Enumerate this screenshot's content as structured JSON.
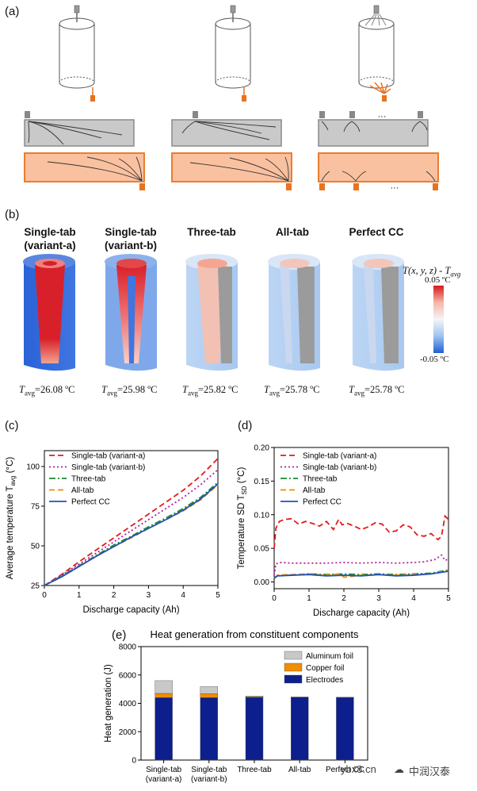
{
  "panels": {
    "a": "(a)",
    "b": "(b)",
    "c": "(c)",
    "d": "(d)",
    "e": "(e)"
  },
  "schematic": {
    "ellipsis": "···"
  },
  "thermal": {
    "headers": [
      {
        "line1": "Single-tab",
        "line2": "(variant-a)"
      },
      {
        "line1": "Single-tab",
        "line2": "(variant-b)"
      },
      {
        "line1": "Three-tab",
        "line2": ""
      },
      {
        "line1": "All-tab",
        "line2": ""
      },
      {
        "line1": "Perfect CC",
        "line2": ""
      }
    ],
    "tavg_prefix": "T",
    "tavg_sub": "avg",
    "tavg_values": [
      "=26.08 ºC",
      "=25.98 ºC",
      "=25.82 ºC",
      "=25.78 ºC",
      "=25.78 ºC"
    ],
    "colorbar": {
      "title_main": "T(x, y, z) - T",
      "title_sub": "avg",
      "max_label": "0.05 ºC",
      "min_label": "-0.05 ºC",
      "colors": [
        "#d7191c",
        "#f7b6a8",
        "#f5f5f5",
        "#9cc3ef",
        "#1f5fd6"
      ]
    }
  },
  "watermark": {
    "site": "ybx8.cn",
    "brand": "中润汉泰"
  },
  "chart_data": [
    {
      "id": "c",
      "type": "line",
      "title": "",
      "xlabel": "Discharge capacity (Ah)",
      "ylabel": "Average temperature T",
      "ylabel_sub": "avg",
      "ylabel_unit": " (°C)",
      "xlim": [
        0,
        5
      ],
      "ylim": [
        25,
        110
      ],
      "xticks": [
        0,
        1,
        2,
        3,
        4,
        5
      ],
      "yticks": [
        25,
        50,
        75,
        100
      ],
      "legend": "top-left",
      "series": [
        {
          "name": "Single-tab (variant-a)",
          "color": "#e31a1c",
          "dash": "7,4",
          "x": [
            0,
            0.5,
            1,
            1.5,
            2,
            2.5,
            3,
            3.5,
            4,
            4.5,
            5
          ],
          "y": [
            25,
            32,
            40,
            47.5,
            55,
            62.5,
            70,
            77.5,
            85,
            94,
            105
          ]
        },
        {
          "name": "Single-tab (variant-b)",
          "color": "#b0209a",
          "dash": "2,3",
          "x": [
            0,
            0.5,
            1,
            1.5,
            2,
            2.5,
            3,
            3.5,
            4,
            4.5,
            5
          ],
          "y": [
            25,
            31.5,
            38.5,
            45.5,
            52.5,
            59.5,
            66.5,
            73.5,
            80.5,
            88.5,
            98
          ]
        },
        {
          "name": "Three-tab",
          "color": "#1a8a2e",
          "dash": "8,3,2,3",
          "x": [
            0,
            0.5,
            1,
            1.5,
            2,
            2.5,
            3,
            3.5,
            4,
            4.5,
            5
          ],
          "y": [
            25,
            31,
            37.5,
            44,
            50.5,
            56,
            62,
            67.5,
            73.5,
            80.5,
            90
          ]
        },
        {
          "name": "All-tab",
          "color": "#f08c00",
          "dash": "7,4",
          "x": [
            0,
            0.5,
            1,
            1.5,
            2,
            2.5,
            3,
            3.5,
            4,
            4.5,
            5
          ],
          "y": [
            25,
            30.5,
            37,
            43.5,
            49.5,
            55,
            61,
            66.5,
            72,
            79,
            88.5
          ]
        },
        {
          "name": "Perfect CC",
          "color": "#1f4fbf",
          "dash": "",
          "x": [
            0,
            0.5,
            1,
            1.5,
            2,
            2.5,
            3,
            3.5,
            4,
            4.5,
            5
          ],
          "y": [
            25,
            30.5,
            37,
            43.5,
            49.5,
            55.5,
            61,
            66.5,
            72.5,
            79.5,
            89
          ]
        }
      ]
    },
    {
      "id": "d",
      "type": "line",
      "title": "",
      "xlabel": "Discharge capacity (Ah)",
      "ylabel": "Temperature SD T",
      "ylabel_sub": "SD",
      "ylabel_unit": " (°C)",
      "xlim": [
        0,
        5
      ],
      "ylim": [
        -0.01,
        0.2
      ],
      "xticks": [
        0,
        1,
        2,
        3,
        4,
        5
      ],
      "yticks": [
        0,
        0.05,
        0.1,
        0.15,
        0.2
      ],
      "ytick_labels": [
        "0.00",
        "0.05",
        "0.10",
        "0.15",
        "0.20"
      ],
      "legend": "top-left",
      "series": [
        {
          "name": "Single-tab (variant-a)",
          "color": "#e31a1c",
          "dash": "7,4",
          "x": [
            0,
            0.05,
            0.15,
            0.3,
            0.5,
            0.7,
            0.9,
            1.1,
            1.3,
            1.5,
            1.7,
            1.85,
            1.95,
            2.1,
            2.3,
            2.5,
            2.7,
            2.9,
            3.1,
            3.3,
            3.5,
            3.7,
            3.9,
            4.1,
            4.3,
            4.5,
            4.7,
            4.8,
            4.9,
            5
          ],
          "y": [
            0.05,
            0.08,
            0.09,
            0.093,
            0.094,
            0.086,
            0.09,
            0.087,
            0.083,
            0.09,
            0.078,
            0.093,
            0.085,
            0.087,
            0.083,
            0.078,
            0.082,
            0.088,
            0.086,
            0.074,
            0.076,
            0.085,
            0.082,
            0.07,
            0.068,
            0.072,
            0.063,
            0.068,
            0.098,
            0.093
          ]
        },
        {
          "name": "Single-tab (variant-b)",
          "color": "#b0209a",
          "dash": "2,3",
          "x": [
            0,
            0.05,
            0.2,
            0.5,
            1,
            1.5,
            2,
            2.5,
            3,
            3.5,
            4,
            4.3,
            4.6,
            4.8,
            4.9,
            5
          ],
          "y": [
            0.01,
            0.027,
            0.029,
            0.028,
            0.028,
            0.028,
            0.029,
            0.028,
            0.029,
            0.028,
            0.029,
            0.03,
            0.033,
            0.04,
            0.032,
            0.034
          ]
        },
        {
          "name": "Three-tab",
          "color": "#1a8a2e",
          "dash": "8,3,2,3",
          "x": [
            0,
            0.1,
            0.5,
            1,
            1.5,
            2,
            2.5,
            3,
            3.5,
            4,
            4.5,
            5
          ],
          "y": [
            0.005,
            0.01,
            0.01,
            0.012,
            0.011,
            0.012,
            0.011,
            0.012,
            0.011,
            0.012,
            0.013,
            0.018
          ]
        },
        {
          "name": "All-tab",
          "color": "#f08c00",
          "dash": "7,4",
          "x": [
            0,
            0.1,
            0.5,
            1,
            1.5,
            1.9,
            2,
            2.5,
            3,
            3.5,
            4,
            4.5,
            5
          ],
          "y": [
            0.006,
            0.01,
            0.011,
            0.012,
            0.01,
            0.012,
            0.007,
            0.01,
            0.011,
            0.01,
            0.011,
            0.012,
            0.017
          ]
        },
        {
          "name": "Perfect CC",
          "color": "#1f4fbf",
          "dash": "",
          "x": [
            0,
            0.1,
            0.5,
            1,
            1.5,
            2,
            2.5,
            3,
            3.5,
            4,
            4.5,
            5
          ],
          "y": [
            0.006,
            0.009,
            0.01,
            0.011,
            0.009,
            0.01,
            0.009,
            0.011,
            0.009,
            0.01,
            0.012,
            0.016
          ]
        }
      ]
    },
    {
      "id": "e",
      "type": "bar",
      "stacked": true,
      "title": "Heat generation from constituent components",
      "xlabel": "",
      "ylabel": "Heat generation (J)",
      "ylim": [
        0,
        8000
      ],
      "yticks": [
        0,
        2000,
        4000,
        6000,
        8000
      ],
      "legend": "top-right",
      "categories": [
        {
          "line1": "Single-tab",
          "line2": "(variant-a)"
        },
        {
          "line1": "Single-tab",
          "line2": "(variant-b)"
        },
        {
          "line1": "Three-tab",
          "line2": ""
        },
        {
          "line1": "All-tab",
          "line2": ""
        },
        {
          "line1": "Perfect CC",
          "line2": ""
        }
      ],
      "series": [
        {
          "name": "Electrodes",
          "color": "#0d1f8c",
          "values": [
            4400,
            4400,
            4420,
            4430,
            4420
          ]
        },
        {
          "name": "Copper foil",
          "color": "#f28c00",
          "values": [
            300,
            280,
            40,
            10,
            5
          ]
        },
        {
          "name": "Aluminum foil",
          "color": "#c8c8c8",
          "values": [
            900,
            500,
            60,
            10,
            5
          ]
        }
      ],
      "legend_order": [
        "Aluminum foil",
        "Copper foil",
        "Electrodes"
      ]
    }
  ]
}
